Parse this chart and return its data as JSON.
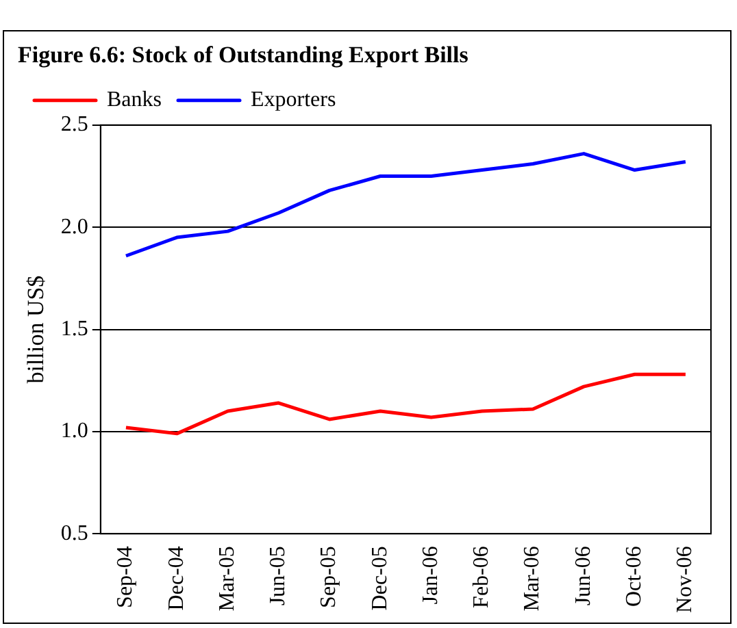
{
  "chart_data": {
    "type": "line",
    "title": "Figure 6.6: Stock of Outstanding Export Bills",
    "ylabel": "billion US$",
    "categories": [
      "Sep-04",
      "Dec-04",
      "Mar-05",
      "Jun-05",
      "Sep-05",
      "Dec-05",
      "Jan-06",
      "Feb-06",
      "Mar-06",
      "Jun-06",
      "Oct-06",
      "Nov-06"
    ],
    "series": [
      {
        "name": "Banks",
        "color": "#ff0000",
        "values": [
          1.02,
          0.99,
          1.1,
          1.14,
          1.06,
          1.1,
          1.07,
          1.1,
          1.11,
          1.22,
          1.28,
          1.28
        ]
      },
      {
        "name": "Exporters",
        "color": "#0000ff",
        "values": [
          1.86,
          1.95,
          1.98,
          2.07,
          2.18,
          2.25,
          2.25,
          2.28,
          2.31,
          2.36,
          2.28,
          2.32
        ]
      }
    ],
    "ylim": [
      0.5,
      2.5
    ],
    "yticks": [
      {
        "value": 0.5,
        "label": "0.5"
      },
      {
        "value": 1,
        "label": "1.0"
      },
      {
        "value": 1.5,
        "label": "1.5"
      },
      {
        "value": 2,
        "label": "2.0"
      },
      {
        "value": 2.5,
        "label": "2.5"
      }
    ],
    "grid": "y",
    "legend": "top left",
    "marker": "none",
    "line_style": "solid"
  }
}
